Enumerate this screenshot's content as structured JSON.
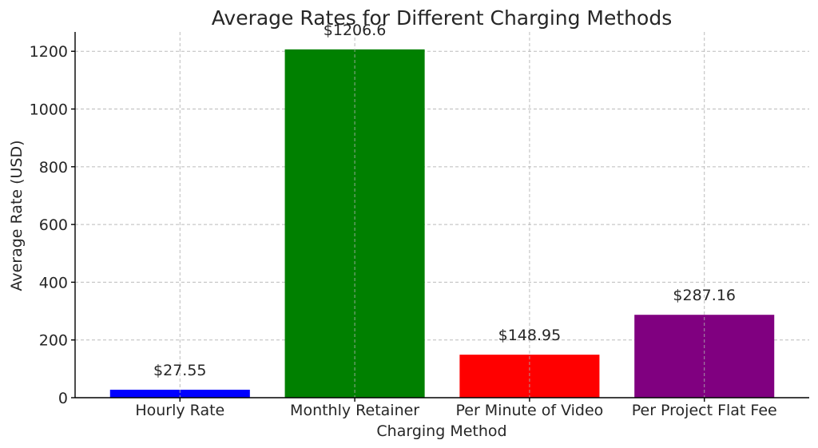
{
  "chart_data": {
    "type": "bar",
    "title": "Average Rates for Different Charging Methods",
    "xlabel": "Charging Method",
    "ylabel": "Average Rate (USD)",
    "categories": [
      "Hourly Rate",
      "Monthly Retainer",
      "Per Minute of Video",
      "Per Project Flat Fee"
    ],
    "values": [
      27.55,
      1206.6,
      148.95,
      287.16
    ],
    "data_labels": [
      "$27.55",
      "$1206.6",
      "$148.95",
      "$287.16"
    ],
    "colors": [
      "#0000ff",
      "#008000",
      "#ff0000",
      "#800080"
    ],
    "ylim": [
      0,
      1267
    ],
    "yticks": [
      0,
      200,
      400,
      600,
      800,
      1000,
      1200
    ],
    "grid": true
  }
}
